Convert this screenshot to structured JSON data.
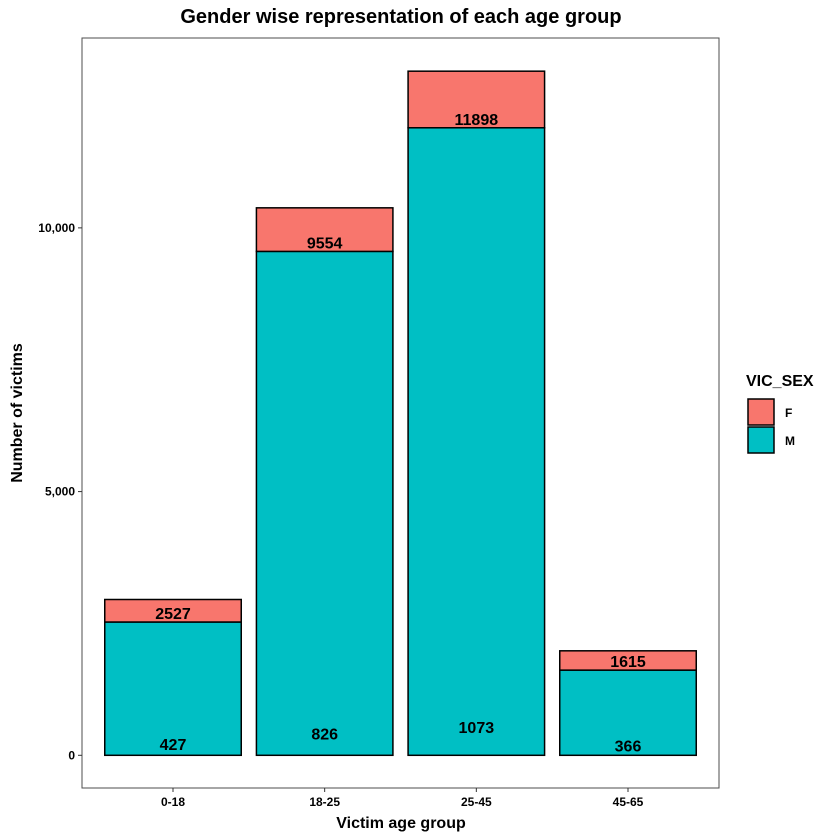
{
  "chart_data": {
    "type": "bar",
    "stacked": true,
    "title": "Gender wise representation of each age group",
    "xlabel": "Victim age group",
    "ylabel": "Number of victims",
    "categories": [
      "0-18",
      "18-25",
      "25-45",
      "45-65"
    ],
    "series": [
      {
        "name": "M",
        "color": "#00BFC4",
        "values": [
          2527,
          9554,
          11898,
          1615
        ]
      },
      {
        "name": "F",
        "color": "#F8766D",
        "values": [
          427,
          826,
          1073,
          366
        ]
      }
    ],
    "data_labels": {
      "top": [
        "2527",
        "9554",
        "11898",
        "1615"
      ],
      "bottom": [
        "427",
        "826",
        "1073",
        "366"
      ]
    },
    "y_ticks": [
      0,
      5000,
      10000
    ],
    "y_tick_labels": [
      "0",
      "5,000",
      "10,000"
    ],
    "ylim": [
      -620,
      13600
    ],
    "grid": false,
    "legend": {
      "title": "VIC_SEX",
      "position": "right",
      "entries": [
        "F",
        "M"
      ]
    }
  }
}
